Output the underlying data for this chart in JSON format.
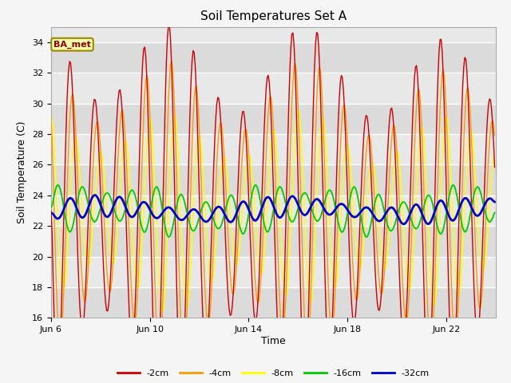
{
  "title": "Soil Temperatures Set A",
  "xlabel": "Time",
  "ylabel": "Soil Temperature (C)",
  "ylim": [
    16,
    35
  ],
  "yticks": [
    16,
    18,
    20,
    22,
    24,
    26,
    28,
    30,
    32,
    34
  ],
  "xlim": [
    6,
    24
  ],
  "xtick_positions": [
    6,
    10,
    14,
    18,
    22
  ],
  "xtick_labels": [
    "Jun 6",
    "Jun 10",
    "Jun 14",
    "Jun 18",
    "Jun 22"
  ],
  "colors": {
    "-2cm": "#cc0000",
    "-4cm": "#ff9900",
    "-8cm": "#ffff00",
    "-16cm": "#00cc00",
    "-32cm": "#0000cc"
  },
  "annotation_text": "BA_met",
  "fig_bg": "#f5f5f5",
  "axes_bg": "#e8e8e8",
  "grid_color": "#ffffff",
  "band_color": "#d8d8d8"
}
